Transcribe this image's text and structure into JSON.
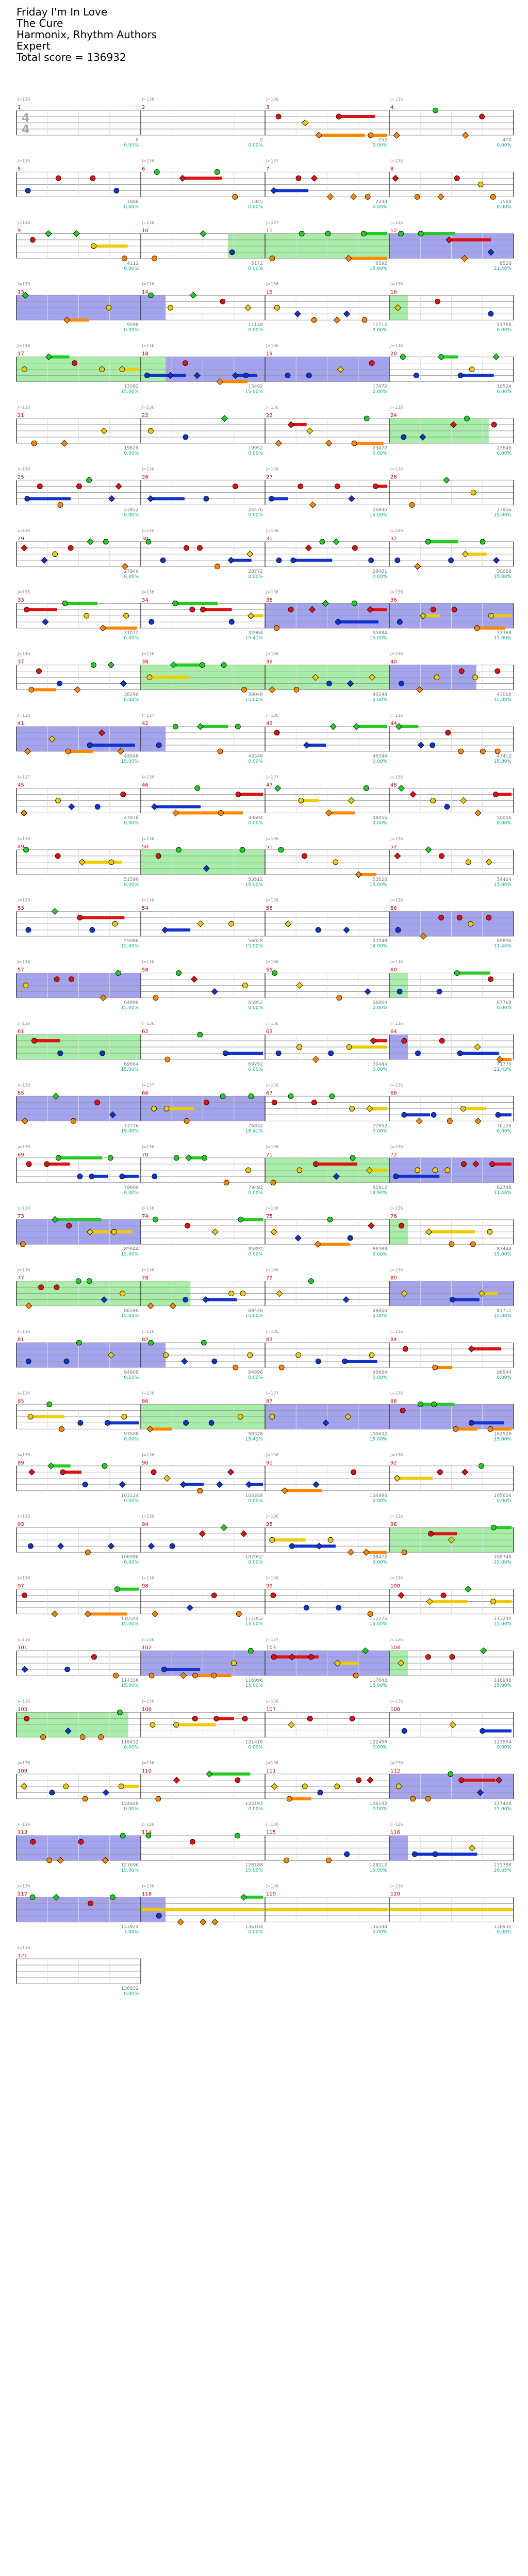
{
  "song": {
    "title": "Friday I'm In Love",
    "artist": "The Cure",
    "charter": "Harmonix, Rhythm Authors",
    "difficulty": "Expert",
    "total_score_label": "Total score = 136932"
  },
  "time_signature": {
    "numerator": "4",
    "denominator": "4"
  },
  "lane_colors": [
    "#22cc22",
    "#dd1111",
    "#eecc00",
    "#1133cc",
    "#ff8800"
  ],
  "overlay_colors": {
    "star_power": "#3dd63d",
    "solo": "#3333dd"
  },
  "measures": [
    {
      "n": 1,
      "bpm": "J=136",
      "score": "0",
      "pct": "0.00%"
    },
    {
      "n": 2,
      "bpm": "J=136",
      "score": "0",
      "pct": "0.00%"
    },
    {
      "n": 3,
      "bpm": "J=136",
      "score": "252",
      "pct": "0.00%"
    },
    {
      "n": 4,
      "bpm": "J=136",
      "score": "470",
      "pct": "0.00%"
    },
    {
      "n": 5,
      "bpm": "J=136",
      "score": "1888",
      "pct": "0.00%"
    },
    {
      "n": 6,
      "bpm": "J=136",
      "score": "1845",
      "pct": "0.00%"
    },
    {
      "n": 7,
      "bpm": "J=137",
      "score": "2248",
      "pct": "0.00%"
    },
    {
      "n": 8,
      "bpm": "J=136",
      "score": "3588",
      "pct": "0.00%"
    },
    {
      "n": 9,
      "bpm": "J=136",
      "score": "4112",
      "pct": "0.00%"
    },
    {
      "n": 10,
      "bpm": "J=136",
      "score": "5172",
      "pct": "0.00%"
    },
    {
      "n": 11,
      "bpm": "J=137",
      "score": "6592",
      "pct": "15.90%"
    },
    {
      "n": 12,
      "bpm": "J=136",
      "score": "8528",
      "pct": "11.46%"
    },
    {
      "n": 13,
      "bpm": "J=136",
      "score": "9596",
      "pct": "0.00%"
    },
    {
      "n": 14,
      "bpm": "J=136",
      "score": "11148",
      "pct": "0.00%"
    },
    {
      "n": 15,
      "bpm": "J=136",
      "score": "11712",
      "pct": "0.00%"
    },
    {
      "n": 16,
      "bpm": "J=136",
      "score": "11768",
      "pct": "0.00%"
    },
    {
      "n": 17,
      "bpm": "J=136",
      "score": "13092",
      "pct": "15.00%"
    },
    {
      "n": 18,
      "bpm": "J=136",
      "score": "15492",
      "pct": "15.00%"
    },
    {
      "n": 19,
      "bpm": "J=136",
      "score": "17472",
      "pct": "0.00%"
    },
    {
      "n": 20,
      "bpm": "J=136",
      "score": "19524",
      "pct": "0.00%"
    },
    {
      "n": 21,
      "bpm": "J=136",
      "score": "19828",
      "pct": "0.00%"
    },
    {
      "n": 22,
      "bpm": "J=136",
      "score": "19952",
      "pct": "0.00%"
    },
    {
      "n": 23,
      "bpm": "J=136",
      "score": "23472",
      "pct": "0.00%"
    },
    {
      "n": 24,
      "bpm": "J=136",
      "score": "23648",
      "pct": "0.00%"
    },
    {
      "n": 25,
      "bpm": "J=136",
      "score": "23952",
      "pct": "0.00%"
    },
    {
      "n": 26,
      "bpm": "J=136",
      "score": "24476",
      "pct": "0.00%"
    },
    {
      "n": 27,
      "bpm": "J=136",
      "score": "26946",
      "pct": "15.00%"
    },
    {
      "n": 28,
      "bpm": "J=136",
      "score": "27856",
      "pct": "15.00%"
    },
    {
      "n": 29,
      "bpm": "J=136",
      "score": "27940",
      "pct": "0.00%"
    },
    {
      "n": 30,
      "bpm": "J=136",
      "score": "28772",
      "pct": "0.00%"
    },
    {
      "n": 31,
      "bpm": "J=136",
      "score": "29481",
      "pct": "0.00%"
    },
    {
      "n": 32,
      "bpm": "J=136",
      "score": "30688",
      "pct": "15.00%"
    },
    {
      "n": 33,
      "bpm": "J=136",
      "score": "31072",
      "pct": "0.00%"
    },
    {
      "n": 34,
      "bpm": "J=136",
      "score": "32064",
      "pct": "15.41%"
    },
    {
      "n": 35,
      "bpm": "J=136",
      "score": "35884",
      "pct": "15.00%"
    },
    {
      "n": 36,
      "bpm": "J=136",
      "score": "37368",
      "pct": "15.00%"
    },
    {
      "n": 37,
      "bpm": "J=136",
      "score": "38298",
      "pct": "0.00%"
    },
    {
      "n": 38,
      "bpm": "J=136",
      "score": "39048",
      "pct": "15.00%"
    },
    {
      "n": 39,
      "bpm": "J=136",
      "score": "40248",
      "pct": "0.00%"
    },
    {
      "n": 40,
      "bpm": "J=136",
      "score": "43068",
      "pct": "15.00%"
    },
    {
      "n": 41,
      "bpm": "J=136",
      "score": "44848",
      "pct": "15.00%"
    },
    {
      "n": 42,
      "bpm": "J=137",
      "score": "45548",
      "pct": "0.00%"
    },
    {
      "n": 43,
      "bpm": "J=136",
      "score": "46344",
      "pct": "0.00%"
    },
    {
      "n": 44,
      "bpm": "J=136",
      "score": "47412",
      "pct": "15.00%"
    },
    {
      "n": 45,
      "bpm": "J=137",
      "score": "47976",
      "pct": "0.00%"
    },
    {
      "n": 46,
      "bpm": "J=136",
      "score": "48604",
      "pct": "0.00%"
    },
    {
      "n": 47,
      "bpm": "J=137",
      "score": "49456",
      "pct": "0.00%"
    },
    {
      "n": 48,
      "bpm": "J=136",
      "score": "50056",
      "pct": "0.00%"
    },
    {
      "n": 49,
      "bpm": "J=136",
      "score": "51596",
      "pct": "0.00%"
    },
    {
      "n": 50,
      "bpm": "J=136",
      "score": "53512",
      "pct": "15.00%"
    },
    {
      "n": 51,
      "bpm": "J=136",
      "score": "53528",
      "pct": "15.00%"
    },
    {
      "n": 52,
      "bpm": "J=136",
      "score": "54464",
      "pct": "15.00%"
    },
    {
      "n": 53,
      "bpm": "J=136",
      "score": "55086",
      "pct": "15.00%"
    },
    {
      "n": 54,
      "bpm": "J=136",
      "score": "56028",
      "pct": "15.00%"
    },
    {
      "n": 55,
      "bpm": "J=136",
      "score": "57048",
      "pct": "14.90%"
    },
    {
      "n": 56,
      "bpm": "J=136",
      "score": "60856",
      "pct": "11.46%"
    },
    {
      "n": 57,
      "bpm": "J=136",
      "score": "64896",
      "pct": "15.00%"
    },
    {
      "n": 58,
      "bpm": "J=136",
      "score": "65952",
      "pct": "0.00%"
    },
    {
      "n": 59,
      "bpm": "J=136",
      "score": "66864",
      "pct": "0.00%"
    },
    {
      "n": 60,
      "bpm": "J=136",
      "score": "67768",
      "pct": "0.00%"
    },
    {
      "n": 61,
      "bpm": "J=136",
      "score": "69664",
      "pct": "15.00%"
    },
    {
      "n": 62,
      "bpm": "J=136",
      "score": "69792",
      "pct": "0.00%"
    },
    {
      "n": 63,
      "bpm": "J=136",
      "score": "70444",
      "pct": "0.00%"
    },
    {
      "n": 64,
      "bpm": "J=136",
      "score": "71776",
      "pct": "21.43%"
    },
    {
      "n": 65,
      "bpm": "J=136",
      "score": "73776",
      "pct": "15.00%"
    },
    {
      "n": 66,
      "bpm": "J=137",
      "score": "76832",
      "pct": "18.41%"
    },
    {
      "n": 67,
      "bpm": "J=136",
      "score": "77952",
      "pct": "0.00%"
    },
    {
      "n": 68,
      "bpm": "J=136",
      "score": "78128",
      "pct": "0.00%"
    },
    {
      "n": 69,
      "bpm": "J=136",
      "score": "79600",
      "pct": "0.00%"
    },
    {
      "n": 70,
      "bpm": "J=136",
      "score": "79492",
      "pct": "0.00%"
    },
    {
      "n": 71,
      "bpm": "J=136",
      "score": "81912",
      "pct": "14.90%"
    },
    {
      "n": 72,
      "bpm": "J=136",
      "score": "82748",
      "pct": "11.46%"
    },
    {
      "n": 73,
      "bpm": "J=136",
      "score": "85644",
      "pct": "15.00%"
    },
    {
      "n": 74,
      "bpm": "J=136",
      "score": "85892",
      "pct": "0.00%"
    },
    {
      "n": 75,
      "bpm": "J=136",
      "score": "86588",
      "pct": "0.00%"
    },
    {
      "n": 76,
      "bpm": "J=136",
      "score": "87444",
      "pct": "15.00%"
    },
    {
      "n": 77,
      "bpm": "J=136",
      "score": "88596",
      "pct": "15.00%"
    },
    {
      "n": 78,
      "bpm": "J=136",
      "score": "89448",
      "pct": "15.00%"
    },
    {
      "n": 79,
      "bpm": "J=136",
      "score": "89860",
      "pct": "0.00%"
    },
    {
      "n": 80,
      "bpm": "J=136",
      "score": "91712",
      "pct": "15.00%"
    },
    {
      "n": 81,
      "bpm": "J=136",
      "score": "94808",
      "pct": "0.10%"
    },
    {
      "n": 82,
      "bpm": "J=136",
      "score": "94896",
      "pct": "0.00%"
    },
    {
      "n": 83,
      "bpm": "J=136",
      "score": "95684",
      "pct": "0.00%"
    },
    {
      "n": 84,
      "bpm": "J=136",
      "score": "96544",
      "pct": "0.00%"
    },
    {
      "n": 85,
      "bpm": "J=136",
      "score": "97588",
      "pct": "0.00%"
    },
    {
      "n": 86,
      "bpm": "J=136",
      "score": "98328",
      "pct": "15.41%"
    },
    {
      "n": 87,
      "bpm": "J=137",
      "score": "100632",
      "pct": "15.00%"
    },
    {
      "n": 88,
      "bpm": "J=136",
      "score": "102528",
      "pct": "15.00%"
    },
    {
      "n": 89,
      "bpm": "J=136",
      "score": "103124",
      "pct": "0.00%"
    },
    {
      "n": 90,
      "bpm": "J=136",
      "score": "104248",
      "pct": "0.00%"
    },
    {
      "n": 91,
      "bpm": "J=136",
      "score": "104996",
      "pct": "0.00%"
    },
    {
      "n": 92,
      "bpm": "J=136",
      "score": "105604",
      "pct": "0.00%"
    },
    {
      "n": 93,
      "bpm": "J=136",
      "score": "106996",
      "pct": "0.00%"
    },
    {
      "n": 94,
      "bpm": "J=136",
      "score": "107952",
      "pct": "0.00%"
    },
    {
      "n": 95,
      "bpm": "J=136",
      "score": "108472",
      "pct": "0.00%"
    },
    {
      "n": 96,
      "bpm": "J=136",
      "score": "108748",
      "pct": "15.00%"
    },
    {
      "n": 97,
      "bpm": "J=136",
      "score": "110544",
      "pct": "15.00%"
    },
    {
      "n": 98,
      "bpm": "J=136",
      "score": "111052",
      "pct": "15.00%"
    },
    {
      "n": 99,
      "bpm": "J=136",
      "score": "112176",
      "pct": "15.00%"
    },
    {
      "n": 100,
      "bpm": "J=136",
      "score": "113244",
      "pct": "15.00%"
    },
    {
      "n": 101,
      "bpm": "J=136",
      "score": "114336",
      "pct": "15.00%"
    },
    {
      "n": 102,
      "bpm": "J=136",
      "score": "116996",
      "pct": "15.00%"
    },
    {
      "n": 103,
      "bpm": "J=137",
      "score": "117648",
      "pct": "15.00%"
    },
    {
      "n": 104,
      "bpm": "J=136",
      "score": "118948",
      "pct": "15.00%"
    },
    {
      "n": 105,
      "bpm": "J=136",
      "score": "118432",
      "pct": "0.00%"
    },
    {
      "n": 106,
      "bpm": "J=136",
      "score": "121416",
      "pct": "0.00%"
    },
    {
      "n": 107,
      "bpm": "J=136",
      "score": "122456",
      "pct": "0.00%"
    },
    {
      "n": 108,
      "bpm": "J=136",
      "score": "123584",
      "pct": "0.00%"
    },
    {
      "n": 109,
      "bpm": "J=136",
      "score": "124448",
      "pct": "0.00%"
    },
    {
      "n": 110,
      "bpm": "J=136",
      "score": "125192",
      "pct": "0.00%"
    },
    {
      "n": 111,
      "bpm": "J=136",
      "score": "126192",
      "pct": "0.00%"
    },
    {
      "n": 112,
      "bpm": "J=136",
      "score": "127428",
      "pct": "15.00%"
    },
    {
      "n": 113,
      "bpm": "J=136",
      "score": "127696",
      "pct": "15.00%"
    },
    {
      "n": 114,
      "bpm": "J=136",
      "score": "128188",
      "pct": "15.00%"
    },
    {
      "n": 115,
      "bpm": "J=136",
      "score": "128212",
      "pct": "15.00%"
    },
    {
      "n": 116,
      "bpm": "J=136",
      "score": "131788",
      "pct": "26.35%"
    },
    {
      "n": 117,
      "bpm": "J=136",
      "score": "133924",
      "pct": "7.00%"
    },
    {
      "n": 118,
      "bpm": "J=136",
      "score": "136104",
      "pct": "0.00%"
    },
    {
      "n": 119,
      "bpm": "J=136",
      "score": "136548",
      "pct": "0.00%"
    },
    {
      "n": 120,
      "bpm": "J=136",
      "score": "136932",
      "pct": "0.00%"
    },
    {
      "n": 121,
      "bpm": "J=136",
      "score": "136932",
      "pct": "0.00%"
    }
  ],
  "overlays": [
    {
      "type": "star",
      "from": 10.7,
      "to": 12
    },
    {
      "type": "solo",
      "from": 12,
      "to": 13
    },
    {
      "type": "solo",
      "from": 13,
      "to": 14.2
    },
    {
      "type": "star",
      "from": 16,
      "to": 16.15
    },
    {
      "type": "star",
      "from": 17,
      "to": 18.2
    },
    {
      "type": "solo",
      "from": 18.2,
      "to": 20
    },
    {
      "type": "star",
      "from": 24,
      "to": 24.8
    },
    {
      "type": "solo",
      "from": 35,
      "to": 37
    },
    {
      "type": "star",
      "from": 38,
      "to": 40
    },
    {
      "type": "solo",
      "from": 40,
      "to": 40.7
    },
    {
      "type": "solo",
      "from": 41,
      "to": 42.2
    },
    {
      "type": "star",
      "from": 50,
      "to": 51
    },
    {
      "type": "solo",
      "from": 56,
      "to": 57
    },
    {
      "type": "solo",
      "from": 57,
      "to": 58
    },
    {
      "type": "star",
      "from": 60,
      "to": 60.15
    },
    {
      "type": "star",
      "from": 61,
      "to": 62
    },
    {
      "type": "solo",
      "from": 64,
      "to": 64.15
    },
    {
      "type": "solo",
      "from": 65,
      "to": 67
    },
    {
      "type": "star",
      "from": 71,
      "to": 72
    },
    {
      "type": "solo",
      "from": 72,
      "to": 73
    },
    {
      "type": "solo",
      "from": 73,
      "to": 74
    },
    {
      "type": "star",
      "from": 76,
      "to": 76.15
    },
    {
      "type": "star",
      "from": 77,
      "to": 78.4
    },
    {
      "type": "solo",
      "from": 80,
      "to": 81
    },
    {
      "type": "solo",
      "from": 81,
      "to": 82.2
    },
    {
      "type": "star",
      "from": 86,
      "to": 87
    },
    {
      "type": "solo",
      "from": 87,
      "to": 89
    },
    {
      "type": "star",
      "from": 96,
      "to": 97
    },
    {
      "type": "solo",
      "from": 102,
      "to": 104
    },
    {
      "type": "star",
      "from": 104,
      "to": 104.15
    },
    {
      "type": "star",
      "from": 105,
      "to": 105.9
    },
    {
      "type": "solo",
      "from": 112,
      "to": 113
    },
    {
      "type": "solo",
      "from": 113,
      "to": 114
    },
    {
      "type": "solo",
      "from": 116,
      "to": 116.15
    },
    {
      "type": "solo",
      "from": 117,
      "to": 118.2
    }
  ]
}
